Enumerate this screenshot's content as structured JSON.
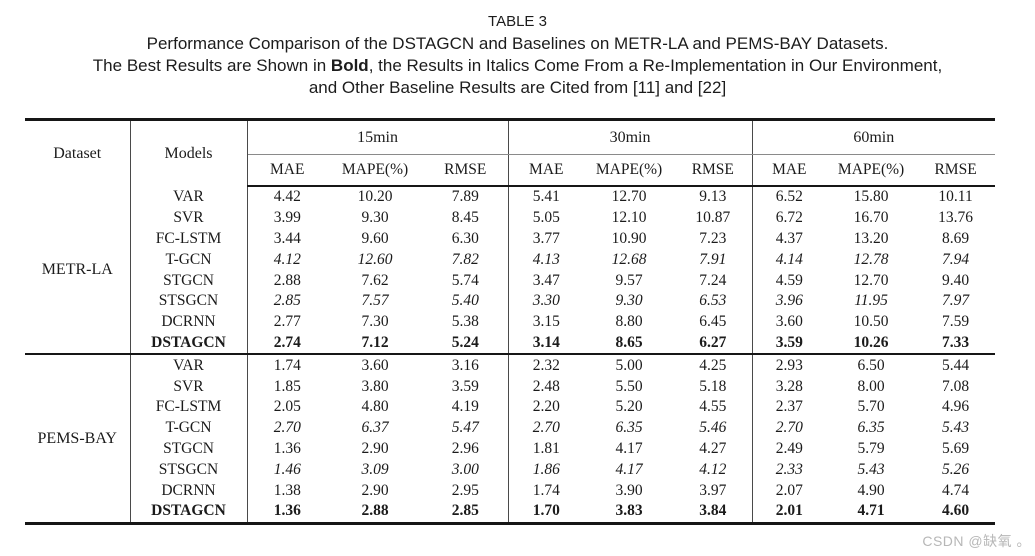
{
  "caption": {
    "label": "TABLE 3",
    "line1": "Performance Comparison of the DSTAGCN and Baselines on METR-LA and PEMS-BAY Datasets.",
    "line2_pre": "The Best Results are Shown in ",
    "line2_bold": "Bold",
    "line2_post": ", the Results in Italics Come From a Re-Implementation in Our Environment,",
    "line3": "and Other Baseline Results are Cited from [11] and [22]"
  },
  "table": {
    "col_headers": {
      "dataset": "Dataset",
      "models": "Models",
      "groups": [
        "15min",
        "30min",
        "60min"
      ],
      "metrics": [
        "MAE",
        "MAPE(%)",
        "RMSE"
      ]
    },
    "sections": [
      {
        "dataset": "METR-LA",
        "rows": [
          {
            "model": "VAR",
            "style": "normal",
            "values": [
              "4.42",
              "10.20",
              "7.89",
              "5.41",
              "12.70",
              "9.13",
              "6.52",
              "15.80",
              "10.11"
            ]
          },
          {
            "model": "SVR",
            "style": "normal",
            "values": [
              "3.99",
              "9.30",
              "8.45",
              "5.05",
              "12.10",
              "10.87",
              "6.72",
              "16.70",
              "13.76"
            ]
          },
          {
            "model": "FC-LSTM",
            "style": "normal",
            "values": [
              "3.44",
              "9.60",
              "6.30",
              "3.77",
              "10.90",
              "7.23",
              "4.37",
              "13.20",
              "8.69"
            ]
          },
          {
            "model": "T-GCN",
            "style": "italic",
            "values": [
              "4.12",
              "12.60",
              "7.82",
              "4.13",
              "12.68",
              "7.91",
              "4.14",
              "12.78",
              "7.94"
            ]
          },
          {
            "model": "STGCN",
            "style": "normal",
            "values": [
              "2.88",
              "7.62",
              "5.74",
              "3.47",
              "9.57",
              "7.24",
              "4.59",
              "12.70",
              "9.40"
            ]
          },
          {
            "model": "STSGCN",
            "style": "italic",
            "values": [
              "2.85",
              "7.57",
              "5.40",
              "3.30",
              "9.30",
              "6.53",
              "3.96",
              "11.95",
              "7.97"
            ]
          },
          {
            "model": "DCRNN",
            "style": "normal",
            "values": [
              "2.77",
              "7.30",
              "5.38",
              "3.15",
              "8.80",
              "6.45",
              "3.60",
              "10.50",
              "7.59"
            ]
          },
          {
            "model": "DSTAGCN",
            "style": "bold",
            "values": [
              "2.74",
              "7.12",
              "5.24",
              "3.14",
              "8.65",
              "6.27",
              "3.59",
              "10.26",
              "7.33"
            ]
          }
        ]
      },
      {
        "dataset": "PEMS-BAY",
        "rows": [
          {
            "model": "VAR",
            "style": "normal",
            "values": [
              "1.74",
              "3.60",
              "3.16",
              "2.32",
              "5.00",
              "4.25",
              "2.93",
              "6.50",
              "5.44"
            ]
          },
          {
            "model": "SVR",
            "style": "normal",
            "values": [
              "1.85",
              "3.80",
              "3.59",
              "2.48",
              "5.50",
              "5.18",
              "3.28",
              "8.00",
              "7.08"
            ]
          },
          {
            "model": "FC-LSTM",
            "style": "normal",
            "values": [
              "2.05",
              "4.80",
              "4.19",
              "2.20",
              "5.20",
              "4.55",
              "2.37",
              "5.70",
              "4.96"
            ]
          },
          {
            "model": "T-GCN",
            "style": "italic",
            "values": [
              "2.70",
              "6.37",
              "5.47",
              "2.70",
              "6.35",
              "5.46",
              "2.70",
              "6.35",
              "5.43"
            ]
          },
          {
            "model": "STGCN",
            "style": "normal",
            "values": [
              "1.36",
              "2.90",
              "2.96",
              "1.81",
              "4.17",
              "4.27",
              "2.49",
              "5.79",
              "5.69"
            ]
          },
          {
            "model": "STSGCN",
            "style": "italic",
            "values": [
              "1.46",
              "3.09",
              "3.00",
              "1.86",
              "4.17",
              "4.12",
              "2.33",
              "5.43",
              "5.26"
            ]
          },
          {
            "model": "DCRNN",
            "style": "normal",
            "values": [
              "1.38",
              "2.90",
              "2.95",
              "1.74",
              "3.90",
              "3.97",
              "2.07",
              "4.90",
              "4.74"
            ]
          },
          {
            "model": "DSTAGCN",
            "style": "bold",
            "values": [
              "1.36",
              "2.88",
              "2.85",
              "1.70",
              "3.83",
              "3.84",
              "2.01",
              "4.71",
              "4.60"
            ]
          }
        ]
      }
    ]
  },
  "watermark": {
    "text": "CSDN @缺氧 。",
    "color": "#b7b7b7"
  }
}
